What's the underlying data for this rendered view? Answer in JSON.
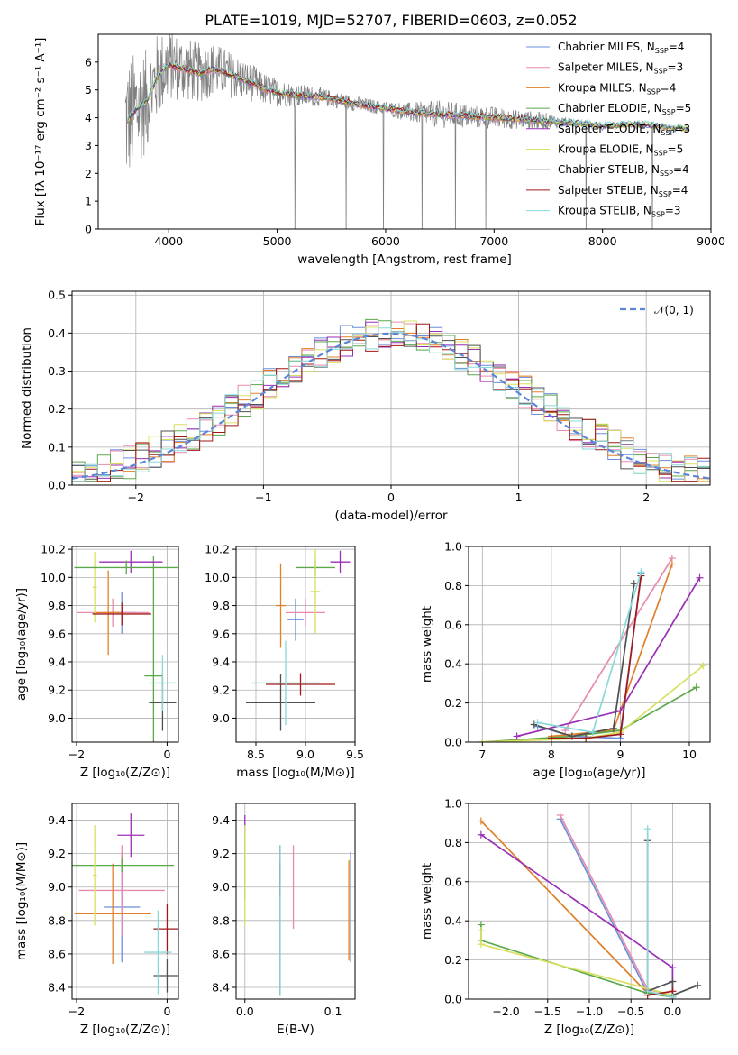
{
  "colors": [
    "#6a8fd8",
    "#e88aae",
    "#e0802a",
    "#5aa84a",
    "#9a2fb5",
    "#d8e060",
    "#505050",
    "#a01818",
    "#88d8d8"
  ],
  "spec_color": "#808080",
  "figure_title": "PLATE=1019, MJD=52707, FIBERID=0603, z=0.052",
  "chart_data": [
    {
      "id": "spectrum",
      "type": "line",
      "xlabel": "wavelength [Angstrom, rest frame]",
      "ylabel": "Flux [fλ 10⁻¹⁷ erg cm⁻² s⁻¹ A⁻¹]",
      "xlim": [
        3350,
        9000
      ],
      "ylim": [
        0,
        7
      ],
      "xticks": [
        4000,
        5000,
        6000,
        7000,
        8000,
        9000
      ],
      "yticks": [
        0,
        1,
        2,
        3,
        4,
        5,
        6
      ],
      "legend": [
        {
          "base": "Chabrier MILES, N",
          "sub": "SSP",
          "tail": "=4"
        },
        {
          "base": "Salpeter MILES, N",
          "sub": "SSP",
          "tail": "=3"
        },
        {
          "base": "Kroupa MILES, N",
          "sub": "SSP",
          "tail": "=4"
        },
        {
          "base": "Chabrier ELODIE, N",
          "sub": "SSP",
          "tail": "=5"
        },
        {
          "base": "Salpeter ELODIE, N",
          "sub": "SSP",
          "tail": "=3"
        },
        {
          "base": "Kroupa ELODIE, N",
          "sub": "SSP",
          "tail": "=5"
        },
        {
          "base": "Chabrier STELIB, N",
          "sub": "SSP",
          "tail": "=4"
        },
        {
          "base": "Salpeter STELIB, N",
          "sub": "SSP",
          "tail": "=4"
        },
        {
          "base": "Kroupa STELIB, N",
          "sub": "SSP",
          "tail": "=3"
        }
      ],
      "model_flux": [
        [
          3620,
          3.9
        ],
        [
          3700,
          4.3
        ],
        [
          3800,
          4.6
        ],
        [
          3900,
          5.5
        ],
        [
          4000,
          5.9
        ],
        [
          4100,
          5.8
        ],
        [
          4200,
          5.7
        ],
        [
          4300,
          5.6
        ],
        [
          4400,
          5.75
        ],
        [
          4500,
          5.65
        ],
        [
          4600,
          5.5
        ],
        [
          4700,
          5.35
        ],
        [
          4800,
          5.2
        ],
        [
          4900,
          5.0
        ],
        [
          5000,
          4.9
        ],
        [
          5200,
          4.8
        ],
        [
          5400,
          4.75
        ],
        [
          5600,
          4.6
        ],
        [
          5800,
          4.45
        ],
        [
          6000,
          4.35
        ],
        [
          6200,
          4.2
        ],
        [
          6400,
          4.15
        ],
        [
          6600,
          4.1
        ],
        [
          6800,
          4.05
        ],
        [
          7000,
          4.0
        ],
        [
          7200,
          3.95
        ],
        [
          7400,
          3.9
        ],
        [
          7600,
          3.85
        ],
        [
          7800,
          3.8
        ],
        [
          8000,
          3.7
        ],
        [
          8200,
          3.75
        ],
        [
          8400,
          3.75
        ],
        [
          8600,
          3.65
        ],
        [
          8800,
          3.6
        ]
      ],
      "obs_noise": [
        [
          3600,
          2.4
        ],
        [
          4000,
          1.3
        ],
        [
          4500,
          0.9
        ],
        [
          5000,
          0.5
        ],
        [
          5500,
          0.3
        ],
        [
          6000,
          0.25
        ],
        [
          6500,
          0.5
        ],
        [
          7000,
          0.4
        ],
        [
          7500,
          0.3
        ],
        [
          7800,
          0.1
        ],
        [
          8000,
          0.05
        ],
        [
          8800,
          0.05
        ]
      ]
    },
    {
      "id": "residuals",
      "type": "histogram",
      "xlabel": "(data-model)/error",
      "ylabel": "Normed distribution",
      "xlim": [
        -2.5,
        2.5
      ],
      "ylim": [
        0,
        0.51
      ],
      "xticks": [
        -2,
        -1,
        0,
        1,
        2
      ],
      "yticks": [
        0.0,
        0.1,
        0.2,
        0.3,
        0.4,
        0.5
      ],
      "bin_width": 0.1,
      "legend_label": "𝒩(0, 1)",
      "legend_color": "#5b85d9"
    },
    {
      "id": "age_vs_Z",
      "type": "errorbar",
      "xlabel": "Z [log₁₀(Z/Z⊙)]",
      "ylabel": "age  [log₁₀(age/yr)]",
      "xlim": [
        -2.1,
        0.25
      ],
      "ylim": [
        8.83,
        10.22
      ],
      "xticks": [
        -2,
        0
      ],
      "yticks": [
        9.0,
        9.2,
        9.4,
        9.6,
        9.8,
        10.0,
        10.2
      ],
      "points": [
        {
          "c": 0,
          "x": -1.0,
          "xerr": 0.3,
          "y": 9.75,
          "yerr": 0.15
        },
        {
          "c": 1,
          "x": -1.2,
          "xerr": 0.8,
          "y": 9.75,
          "yerr": 0.1
        },
        {
          "c": 2,
          "x": -1.3,
          "xerr": 0.3,
          "y": 9.75,
          "yerr": 0.3
        },
        {
          "c": 3,
          "x": -0.3,
          "xerr": 0.2,
          "y": 9.3,
          "yerr": 0.85
        },
        {
          "c": 4,
          "x": -0.8,
          "xerr": 0.7,
          "y": 10.11,
          "yerr": 0.08
        },
        {
          "c": 5,
          "x": -1.6,
          "xerr": 0.05,
          "y": 9.93,
          "yerr": 0.25
        },
        {
          "c": 6,
          "x": -0.1,
          "xerr": 0.3,
          "y": 9.11,
          "yerr": 0.2
        },
        {
          "c": 7,
          "x": -1.0,
          "xerr": 0.65,
          "y": 9.74,
          "yerr": 0.08
        },
        {
          "c": 8,
          "x": -0.1,
          "xerr": 0.3,
          "y": 9.25,
          "yerr": 0.2
        },
        {
          "c": 3,
          "x": -0.9,
          "xerr": 1.15,
          "y": 10.07,
          "yerr": 0.05
        }
      ]
    },
    {
      "id": "age_vs_mass",
      "type": "errorbar",
      "xlabel": "mass [log₁₀(M/M⊙)]",
      "ylabel": "",
      "xlim": [
        8.3,
        9.5
      ],
      "ylim": [
        8.83,
        10.22
      ],
      "xticks": [
        8.5,
        9.0,
        9.5
      ],
      "yticks": [
        9.0,
        9.2,
        9.4,
        9.6,
        9.8,
        10.0,
        10.2
      ],
      "points": [
        {
          "c": 0,
          "x": 8.9,
          "xerr": 0.08,
          "y": 9.7,
          "yerr": 0.15
        },
        {
          "c": 1,
          "x": 9.0,
          "xerr": 0.2,
          "y": 9.75,
          "yerr": 0.1
        },
        {
          "c": 2,
          "x": 8.75,
          "xerr": 0.05,
          "y": 9.8,
          "yerr": 0.3
        },
        {
          "c": 3,
          "x": 9.1,
          "xerr": 0.2,
          "y": 10.07,
          "yerr": 0.06
        },
        {
          "c": 4,
          "x": 9.35,
          "xerr": 0.1,
          "y": 10.11,
          "yerr": 0.08
        },
        {
          "c": 5,
          "x": 9.1,
          "xerr": 0.05,
          "y": 9.9,
          "yerr": 0.3
        },
        {
          "c": 6,
          "x": 8.75,
          "xerr": 0.35,
          "y": 9.11,
          "yerr": 0.2
        },
        {
          "c": 7,
          "x": 8.95,
          "xerr": 0.35,
          "y": 9.24,
          "yerr": 0.08
        },
        {
          "c": 8,
          "x": 8.8,
          "xerr": 0.35,
          "y": 9.25,
          "yerr": 0.3
        }
      ]
    },
    {
      "id": "weight_vs_age",
      "type": "line",
      "xlabel": "age  [log₁₀(age/yr)]",
      "ylabel": "mass weight",
      "xlim": [
        6.8,
        10.3
      ],
      "ylim": [
        0,
        1.0
      ],
      "xticks": [
        7,
        8,
        9,
        10
      ],
      "yticks": [
        0.0,
        0.2,
        0.4,
        0.6,
        0.8,
        1.0
      ],
      "series": [
        {
          "c": 0,
          "x": [
            7.8,
            8.3,
            9.0,
            9.3
          ],
          "y": [
            0.08,
            0.03,
            0.02,
            0.86
          ]
        },
        {
          "c": 1,
          "x": [
            8.2,
            9.75
          ],
          "y": [
            0.06,
            0.94
          ]
        },
        {
          "c": 2,
          "x": [
            8.0,
            8.9,
            9.75
          ],
          "y": [
            0.03,
            0.06,
            0.91
          ]
        },
        {
          "c": 3,
          "x": [
            7.0,
            8.3,
            9.0,
            10.1
          ],
          "y": [
            0.0,
            0.03,
            0.06,
            0.28
          ]
        },
        {
          "c": 4,
          "x": [
            7.5,
            9.0,
            10.15
          ],
          "y": [
            0.03,
            0.16,
            0.84
          ]
        },
        {
          "c": 5,
          "x": [
            7.0,
            8.5,
            9.0,
            10.2
          ],
          "y": [
            0.0,
            0.02,
            0.05,
            0.39
          ]
        },
        {
          "c": 6,
          "x": [
            7.75,
            8.3,
            8.9,
            9.2
          ],
          "y": [
            0.09,
            0.03,
            0.07,
            0.81
          ]
        },
        {
          "c": 7,
          "x": [
            8.0,
            8.5,
            9.0,
            9.3
          ],
          "y": [
            0.02,
            0.02,
            0.04,
            0.85
          ]
        },
        {
          "c": 8,
          "x": [
            7.8,
            8.6,
            9.3
          ],
          "y": [
            0.1,
            0.05,
            0.87
          ]
        }
      ]
    },
    {
      "id": "mass_vs_Z",
      "type": "errorbar",
      "xlabel": "Z [log₁₀(Z/Z⊙)]",
      "ylabel": "mass [log₁₀(M/M⊙)]",
      "xlim": [
        -2.1,
        0.25
      ],
      "ylim": [
        8.33,
        9.5
      ],
      "xticks": [
        -2,
        0
      ],
      "yticks": [
        8.4,
        8.6,
        8.8,
        9.0,
        9.2,
        9.4
      ],
      "points": [
        {
          "c": 0,
          "x": -1.0,
          "xerr": 0.4,
          "y": 8.88,
          "yerr": 0.33
        },
        {
          "c": 1,
          "x": -1.0,
          "xerr": 0.95,
          "y": 8.98,
          "yerr": 0.27
        },
        {
          "c": 2,
          "x": -1.2,
          "xerr": 0.85,
          "y": 8.84,
          "yerr": 0.3
        },
        {
          "c": 3,
          "x": -1.0,
          "xerr": 1.15,
          "y": 9.13,
          "yerr": 0.04
        },
        {
          "c": 4,
          "x": -0.8,
          "xerr": 0.3,
          "y": 9.31,
          "yerr": 0.13
        },
        {
          "c": 5,
          "x": -1.6,
          "xerr": 0.05,
          "y": 9.07,
          "yerr": 0.3
        },
        {
          "c": 6,
          "x": 0.0,
          "xerr": 0.3,
          "y": 8.47,
          "yerr": 0.1
        },
        {
          "c": 7,
          "x": 0.0,
          "xerr": 0.3,
          "y": 8.75,
          "yerr": 0.15
        },
        {
          "c": 8,
          "x": -0.2,
          "xerr": 0.3,
          "y": 8.61,
          "yerr": 0.25
        }
      ]
    },
    {
      "id": "mass_vs_EBV",
      "type": "errorbar",
      "xlabel": "E(B-V)",
      "ylabel": "",
      "xlim": [
        -0.01,
        0.125
      ],
      "ylim": [
        8.33,
        9.5
      ],
      "xticks": [
        0.0,
        0.1
      ],
      "yticks": [
        8.4,
        8.6,
        8.8,
        9.0,
        9.2,
        9.4
      ],
      "points": [
        {
          "c": 0,
          "x": 0.12,
          "xerr": 0,
          "y": 8.88,
          "yerr": 0.33
        },
        {
          "c": 1,
          "x": 0.055,
          "xerr": 0,
          "y": 9.0,
          "yerr": 0.25
        },
        {
          "c": 2,
          "x": 0.118,
          "xerr": 0,
          "y": 8.86,
          "yerr": 0.3
        },
        {
          "c": 3,
          "x": 0.0,
          "xerr": 0,
          "y": 9.13,
          "yerr": 0.2
        },
        {
          "c": 4,
          "x": 0.0,
          "xerr": 0,
          "y": 9.38,
          "yerr": 0.05
        },
        {
          "c": 5,
          "x": 0.0,
          "xerr": 0,
          "y": 9.07,
          "yerr": 0.3
        },
        {
          "c": 6,
          "x": 0.04,
          "xerr": 0,
          "y": 8.75,
          "yerr": 0.4
        },
        {
          "c": 7,
          "x": 0.04,
          "xerr": 0,
          "y": 9.1,
          "yerr": 0.15
        },
        {
          "c": 8,
          "x": 0.04,
          "xerr": 0,
          "y": 8.8,
          "yerr": 0.45
        }
      ]
    },
    {
      "id": "weight_vs_Z",
      "type": "line",
      "xlabel": "Z [log₁₀(Z/Z⊙)]",
      "ylabel": "mass weight",
      "xlim": [
        -2.45,
        0.45
      ],
      "ylim": [
        0,
        1.0
      ],
      "xticks": [
        -2.0,
        -1.5,
        -1.0,
        -0.5,
        0.0
      ],
      "yticks": [
        0.0,
        0.2,
        0.4,
        0.6,
        0.8,
        1.0
      ],
      "series": [
        {
          "c": 0,
          "x": [
            -1.35,
            -0.3,
            0.0
          ],
          "y": [
            0.92,
            0.03,
            0.02
          ]
        },
        {
          "c": 1,
          "x": [
            -1.35,
            -0.3,
            0.0
          ],
          "y": [
            0.94,
            0.05,
            0.02
          ]
        },
        {
          "c": 2,
          "x": [
            -2.3,
            -0.3,
            0.0
          ],
          "y": [
            0.91,
            0.03,
            0.02
          ]
        },
        {
          "c": 3,
          "x": [
            -2.3,
            -2.3,
            -0.3,
            0.0
          ],
          "y": [
            0.38,
            0.3,
            0.03,
            0.01
          ]
        },
        {
          "c": 4,
          "x": [
            -2.3,
            0.0,
            0.0
          ],
          "y": [
            0.84,
            0.16,
            0.0
          ]
        },
        {
          "c": 5,
          "x": [
            -2.3,
            -2.3,
            0.0
          ],
          "y": [
            0.35,
            0.28,
            0.02
          ]
        },
        {
          "c": 6,
          "x": [
            -0.3,
            -0.3,
            0.0,
            0.0,
            0.3
          ],
          "y": [
            0.81,
            0.04,
            0.09,
            0.02,
            0.07
          ]
        },
        {
          "c": 7,
          "x": [
            -0.3,
            0.0
          ],
          "y": [
            0.02,
            0.04
          ]
        },
        {
          "c": 8,
          "x": [
            -0.3,
            -0.3,
            0.0
          ],
          "y": [
            0.87,
            0.04,
            0.01
          ]
        }
      ]
    }
  ]
}
